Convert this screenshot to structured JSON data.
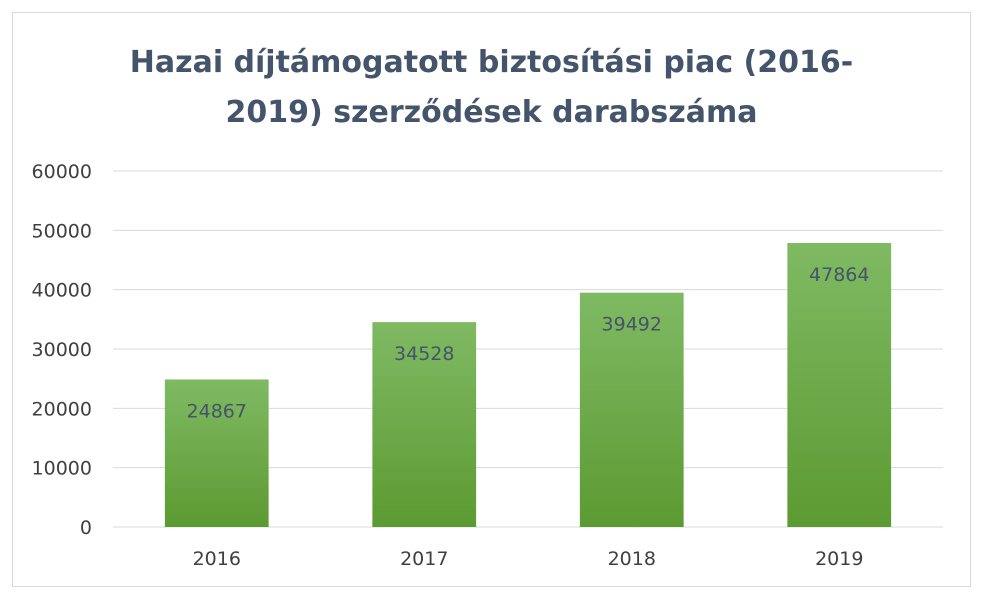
{
  "chart_data": {
    "type": "bar",
    "title_lines": [
      "Hazai díjtámogatott biztosítási piac (2016-",
      "2019) szerződések darabszáma"
    ],
    "categories": [
      "2016",
      "2017",
      "2018",
      "2019"
    ],
    "values": [
      24867,
      34528,
      39492,
      47864
    ],
    "data_labels": [
      "24867",
      "34528",
      "39492",
      "47864"
    ],
    "y_ticks": [
      "0",
      "10000",
      "20000",
      "30000",
      "40000",
      "50000",
      "60000"
    ],
    "ylim": [
      0,
      60000
    ],
    "grid": true,
    "legend": "none",
    "colors": {
      "bar_top": "#7fba63",
      "bar_bottom": "#5c9a32",
      "gridline": "#d9d9d9",
      "axis_text": "#404040",
      "data_label": "#44546a",
      "title": "#44546a"
    }
  }
}
